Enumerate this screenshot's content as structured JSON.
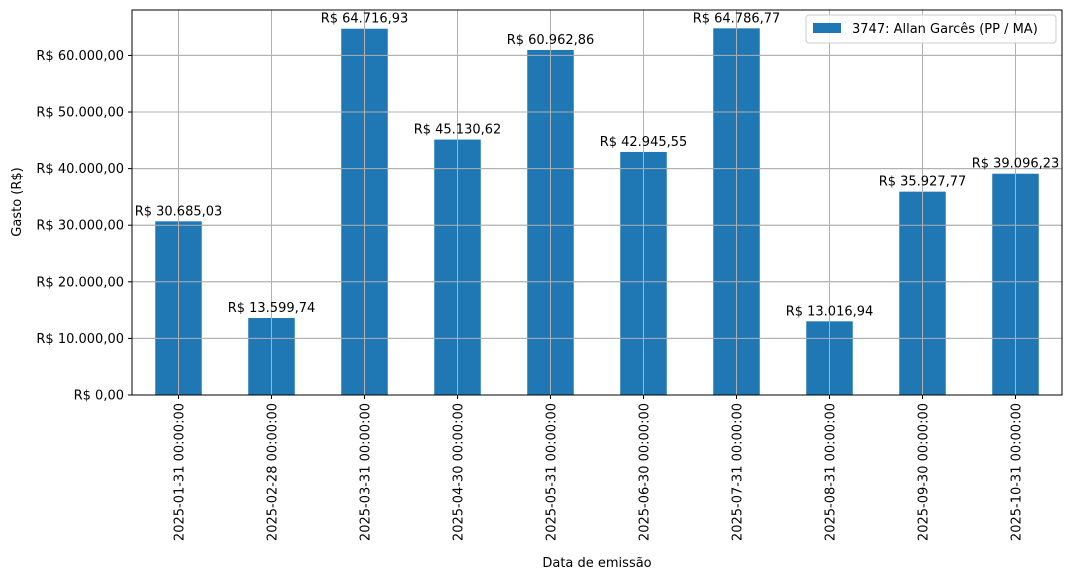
{
  "chart_data": {
    "type": "bar",
    "categories": [
      "2025-01-31 00:00:00",
      "2025-02-28 00:00:00",
      "2025-03-31 00:00:00",
      "2025-04-30 00:00:00",
      "2025-05-31 00:00:00",
      "2025-06-30 00:00:00",
      "2025-07-31 00:00:00",
      "2025-08-31 00:00:00",
      "2025-09-30 00:00:00",
      "2025-10-31 00:00:00"
    ],
    "series": [
      {
        "name": "3747: Allan Garcês (PP / MA)",
        "color": "#1f77b4",
        "values": [
          30685.03,
          13599.74,
          64716.93,
          45130.62,
          60962.86,
          42945.55,
          64786.77,
          13016.94,
          35927.77,
          39096.23
        ]
      }
    ],
    "data_labels": [
      "R$ 30.685,03",
      "R$ 13.599,74",
      "R$ 64.716,93",
      "R$ 45.130,62",
      "R$ 60.962,86",
      "R$ 42.945,55",
      "R$ 64.786,77",
      "R$ 13.016,94",
      "R$ 35.927,77",
      "R$ 39.096,23"
    ],
    "yticks": [
      0,
      10000,
      20000,
      30000,
      40000,
      50000,
      60000
    ],
    "ytick_labels": [
      "R$ 0,00",
      "R$ 10.000,00",
      "R$ 20.000,00",
      "R$ 30.000,00",
      "R$ 40.000,00",
      "R$ 50.000,00",
      "R$ 60.000,00"
    ],
    "ylim": [
      0,
      68025
    ],
    "xlabel": "Data de emissão",
    "ylabel": "Gasto (R$)",
    "grid": true,
    "legend_position": "top-right"
  }
}
